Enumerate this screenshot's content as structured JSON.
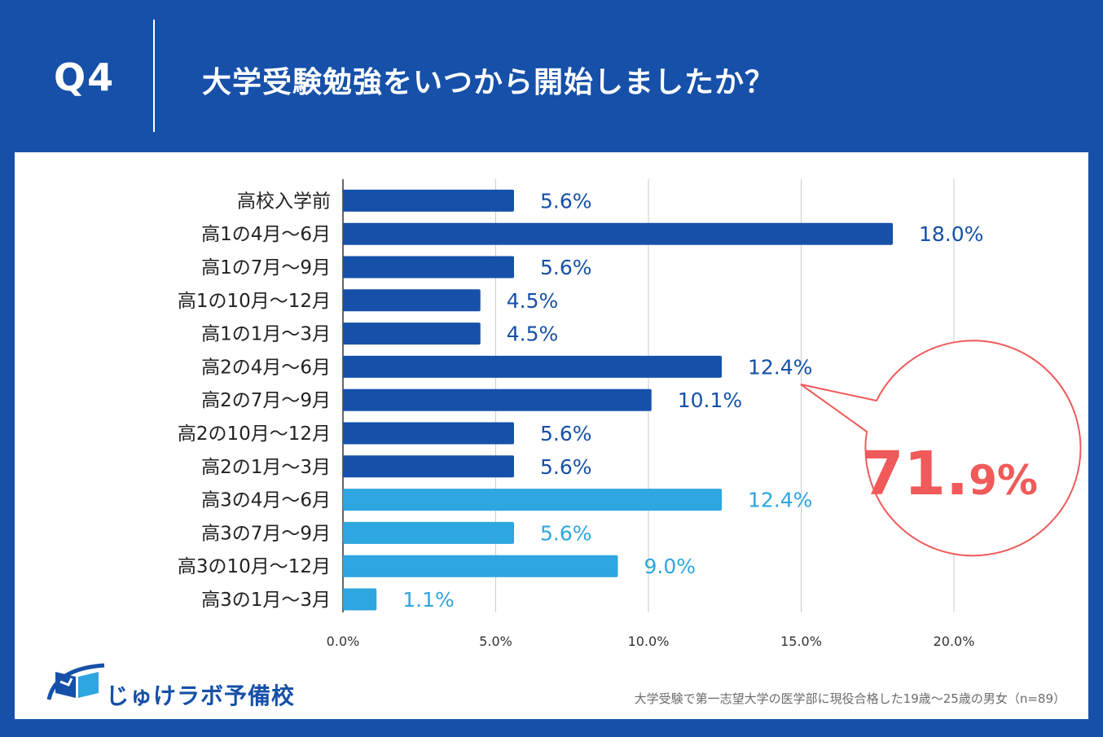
{
  "header": {
    "q_number": "Q4",
    "question": "大学受験勉強をいつから開始しましたか？"
  },
  "colors": {
    "background": "#1650A8",
    "dark_bar": "#1650A8",
    "light_bar": "#2EA6E0",
    "callout": "#F05A5A",
    "grid": "#CCCCCC"
  },
  "chart_data": {
    "type": "bar",
    "orientation": "horizontal",
    "categories": [
      "高校入学前",
      "高1の4月～6月",
      "高1の7月～9月",
      "高1の10月～12月",
      "高1の1月～3月",
      "高2の4月～6月",
      "高2の7月～9月",
      "高2の10月～12月",
      "高2の1月～3月",
      "高3の4月～6月",
      "高3の7月～9月",
      "高3の10月～12月",
      "高3の1月～3月"
    ],
    "values": [
      5.6,
      18.0,
      5.6,
      4.5,
      4.5,
      12.4,
      10.1,
      5.6,
      5.6,
      12.4,
      5.6,
      9.0,
      1.1
    ],
    "value_labels": [
      "5.6%",
      "18.0%",
      "5.6%",
      "4.5%",
      "4.5%",
      "12.4%",
      "10.1%",
      "5.6%",
      "5.6%",
      "12.4%",
      "5.6%",
      "9.0%",
      "1.1%"
    ],
    "series_group": [
      "dark",
      "dark",
      "dark",
      "dark",
      "dark",
      "dark",
      "dark",
      "dark",
      "dark",
      "light",
      "light",
      "light",
      "light"
    ],
    "xlim": [
      0,
      20
    ],
    "xticks": [
      "0.0%",
      "5.0%",
      "10.0%",
      "15.0%",
      "20.0%"
    ],
    "grid": true,
    "annotation": {
      "main": "71.",
      "decimal": "9%"
    }
  },
  "footer": {
    "logo_text": "じゅけラボ予備校",
    "note": "大学受験で第一志望大学の医学部に現役合格した19歳～25歳の男女（n=89）"
  }
}
